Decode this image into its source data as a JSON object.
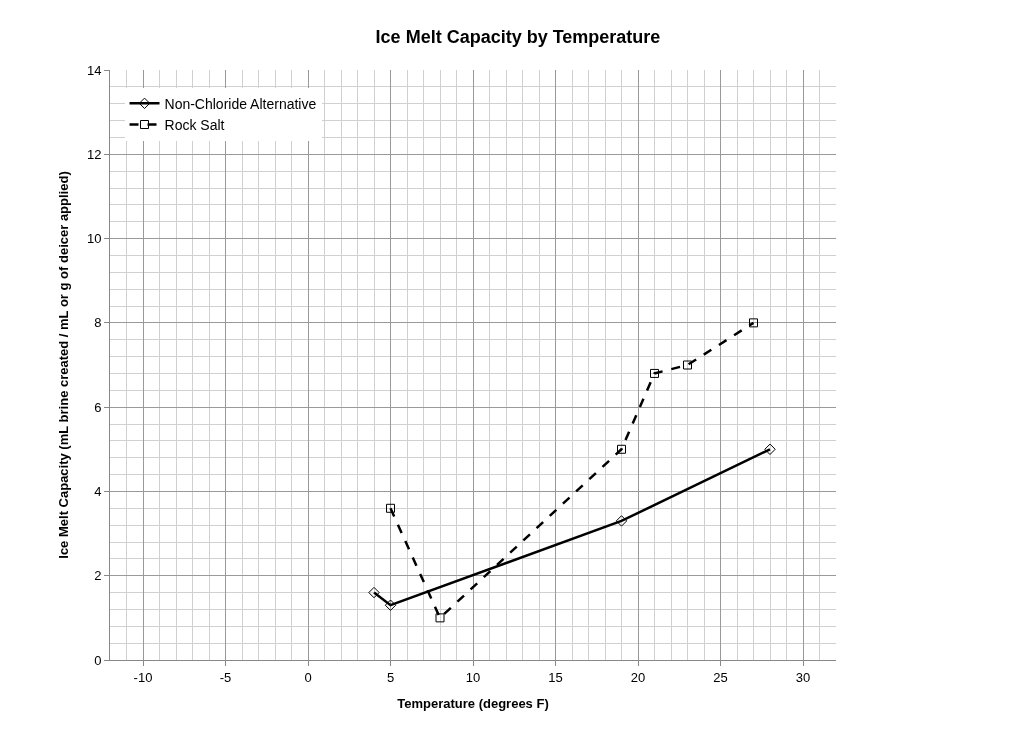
{
  "chart_data": {
    "type": "line",
    "title": "Ice Melt Capacity by Temperature",
    "xlabel": "Temperature (degrees F)",
    "ylabel": "Ice Melt Capacity (mL brine created / mL or g of deicer applied)",
    "xlim": [
      -12,
      32
    ],
    "xticks": [
      -10,
      -5,
      0,
      5,
      10,
      15,
      20,
      25,
      30
    ],
    "ylim": [
      0,
      14
    ],
    "yticks": [
      0,
      2,
      4,
      6,
      8,
      10,
      12,
      14
    ],
    "grid": true,
    "legend": "top left",
    "series": [
      {
        "name": "Non-Chloride Alternative",
        "color": "#000000",
        "marker": "diamond",
        "line_style": "solid",
        "x": [
          4,
          5,
          19,
          28
        ],
        "values": [
          1.6,
          1.3,
          3.3,
          5.0
        ]
      },
      {
        "name": "Rock Salt",
        "color": "#000000",
        "marker": "square",
        "line_style": "dashed",
        "x": [
          5,
          8,
          19,
          21,
          23,
          27
        ],
        "values": [
          3.6,
          1.0,
          5.0,
          6.8,
          7.0,
          8.0
        ]
      }
    ]
  }
}
